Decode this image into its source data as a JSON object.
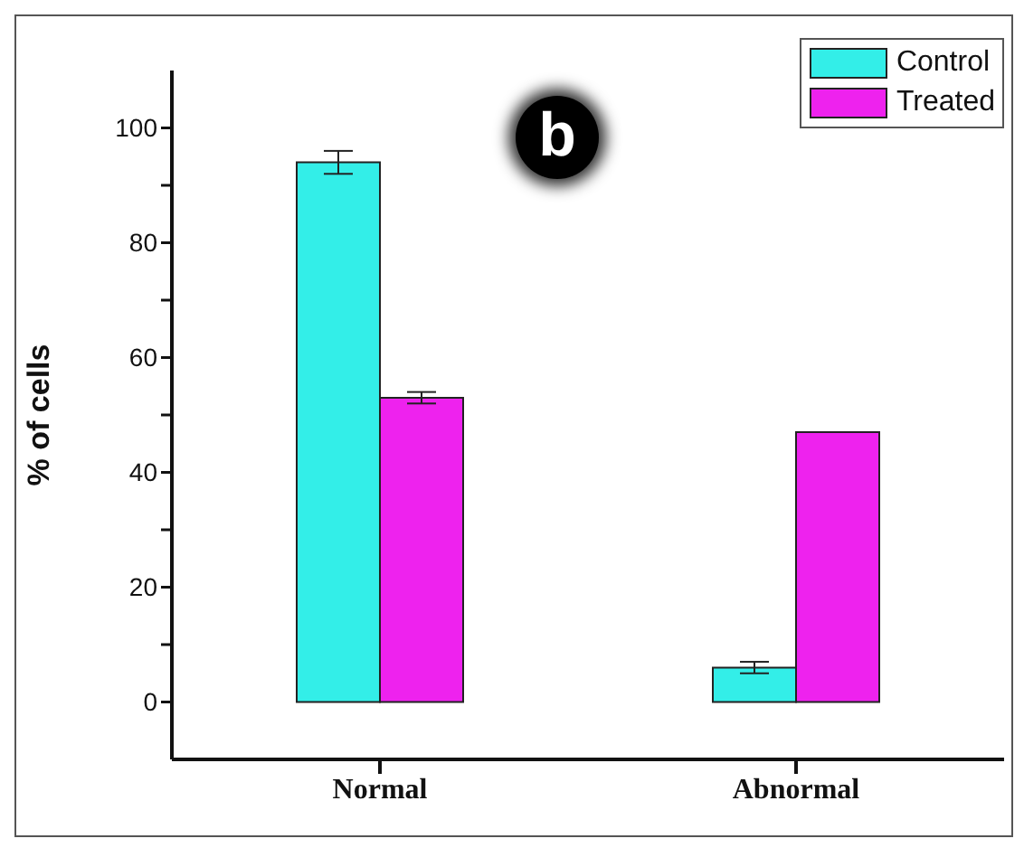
{
  "chart_data": {
    "type": "bar",
    "ylabel": "% of cells",
    "annotations": [
      "b"
    ],
    "categories": [
      "Normal",
      "Abnormal"
    ],
    "series": [
      {
        "name": "Control",
        "color": "#33eee8",
        "values": [
          94,
          6
        ],
        "errors": [
          2,
          1
        ]
      },
      {
        "name": "Treated",
        "color": "#ee22ee",
        "values": [
          53,
          47
        ],
        "errors": [
          1,
          null
        ]
      }
    ],
    "ylim": [
      -10,
      110
    ],
    "yticks": [
      0,
      {
        "value": 10,
        "label": null
      },
      20,
      {
        "value": 30,
        "label": null
      },
      40,
      {
        "value": 50,
        "label": null
      },
      60,
      {
        "value": 70,
        "label": null
      },
      80,
      {
        "value": 90,
        "label": null
      },
      100
    ],
    "grid": false,
    "legend": "top right"
  }
}
